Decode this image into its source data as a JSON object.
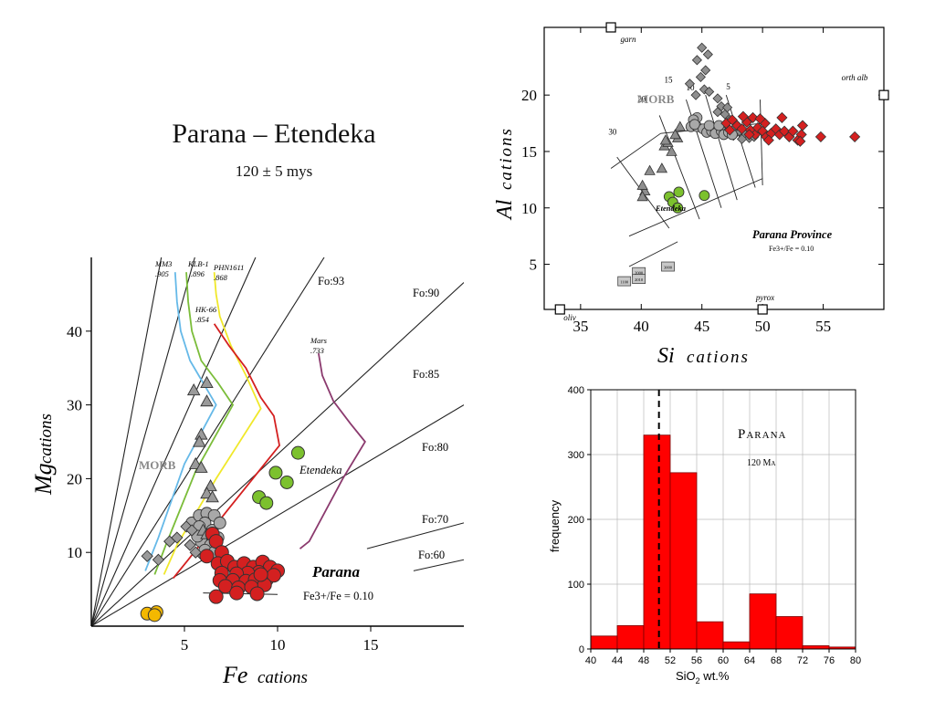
{
  "header": {
    "title": "Parana – Etendeka",
    "subtitle": "120 ± 5 mys"
  },
  "colors": {
    "grey": "#9a9a9a",
    "grey_dark": "#555555",
    "green": "#7cc12e",
    "red": "#d42020",
    "orange": "#f4b800",
    "hist_red": "#ff0000",
    "mm3": "#66b9e8",
    "klb": "#7bbd3a",
    "phn": "#f0e82a",
    "hk66": "#d42020",
    "mars": "#8b3a6e"
  },
  "chart_data": [
    {
      "id": "mg_fe",
      "type": "scatter",
      "xlabel_main": "Fe",
      "xlabel_sub": "cations",
      "ylabel_main": "Mg",
      "ylabel_sub": "cations",
      "xlim": [
        0,
        20
      ],
      "ylim": [
        0,
        50
      ],
      "xticks": [
        5,
        10,
        15
      ],
      "yticks": [
        10,
        20,
        30,
        40
      ],
      "fo_lines": [
        {
          "label": "Fo:93",
          "slope": 13.3
        },
        {
          "label": "Fo:90",
          "slope": 9.0
        },
        {
          "label": "Fo:85",
          "slope": 5.67
        },
        {
          "label": "Fo:80",
          "slope": 4.0
        },
        {
          "label": "Fo:70",
          "slope": 2.33
        },
        {
          "label": "Fo:60",
          "slope": 1.5
        }
      ],
      "curves": [
        {
          "name": "MM3",
          "value": ".905",
          "color_key": "mm3",
          "points": [
            [
              4.5,
              48
            ],
            [
              4.6,
              44
            ],
            [
              4.8,
              40
            ],
            [
              5.3,
              36
            ],
            [
              6.0,
              33
            ],
            [
              6.7,
              30
            ],
            [
              5.0,
              22
            ],
            [
              3.6,
              12
            ],
            [
              2.9,
              7.5
            ]
          ]
        },
        {
          "name": "KLB-1",
          "value": ".896",
          "color_key": "klb",
          "points": [
            [
              5.1,
              48
            ],
            [
              5.2,
              44
            ],
            [
              5.4,
              40
            ],
            [
              5.9,
              36
            ],
            [
              6.8,
              33
            ],
            [
              7.6,
              30
            ],
            [
              5.6,
              21
            ],
            [
              4.0,
              11
            ],
            [
              3.4,
              7
            ]
          ]
        },
        {
          "name": "PHN1611",
          "value": ".868",
          "color_key": "phn",
          "points": [
            [
              6.6,
              48
            ],
            [
              6.7,
              45
            ],
            [
              6.9,
              42
            ],
            [
              7.5,
              38
            ],
            [
              8.3,
              34
            ],
            [
              9.1,
              29.5
            ],
            [
              6.7,
              20
            ],
            [
              4.6,
              11
            ],
            [
              3.9,
              7
            ]
          ]
        },
        {
          "name": "HK-66",
          "value": ".854",
          "color_key": "hk66",
          "points": [
            [
              6.6,
              41
            ],
            [
              7.4,
              38
            ],
            [
              8.3,
              35
            ],
            [
              9.1,
              31
            ],
            [
              9.8,
              28.5
            ],
            [
              10.1,
              24.5
            ],
            [
              7.4,
              16
            ],
            [
              5.2,
              9
            ],
            [
              4.4,
              6.5
            ]
          ]
        },
        {
          "name": "Mars",
          "value": ".733",
          "color_key": "mars",
          "points": [
            [
              12.2,
              37
            ],
            [
              12.4,
              34
            ],
            [
              13.0,
              30.5
            ],
            [
              13.9,
              27.5
            ],
            [
              14.7,
              25
            ],
            [
              13.5,
              20
            ],
            [
              11.7,
              11.5
            ],
            [
              11.2,
              10.5
            ]
          ]
        }
      ],
      "morb_triangles": [
        [
          5.5,
          32
        ],
        [
          6.2,
          33
        ],
        [
          6.2,
          30.5
        ],
        [
          5.9,
          26
        ],
        [
          5.8,
          25
        ],
        [
          5.6,
          22
        ],
        [
          5.9,
          21.5
        ],
        [
          6.4,
          19
        ],
        [
          6.2,
          18
        ],
        [
          6.5,
          17.5
        ],
        [
          6.0,
          13
        ],
        [
          6.2,
          12.5
        ]
      ],
      "morb_diamonds": [
        [
          3.0,
          9.5
        ],
        [
          3.6,
          9
        ],
        [
          4.2,
          11.5
        ],
        [
          4.6,
          12
        ],
        [
          5.1,
          13.5
        ],
        [
          5.4,
          13
        ],
        [
          5.3,
          11
        ],
        [
          5.6,
          10
        ],
        [
          6.0,
          9.5
        ]
      ],
      "morb_circles": [
        [
          5.4,
          14
        ],
        [
          5.8,
          15
        ],
        [
          6.2,
          15.3
        ],
        [
          6.6,
          15
        ],
        [
          6.1,
          14
        ],
        [
          5.8,
          13.5
        ],
        [
          6.5,
          13
        ],
        [
          6.3,
          12
        ],
        [
          6.8,
          12
        ],
        [
          5.9,
          11.5
        ],
        [
          6.4,
          11
        ],
        [
          6.1,
          10.3
        ],
        [
          6.6,
          10
        ],
        [
          5.7,
          12.2
        ],
        [
          6.9,
          14
        ]
      ],
      "etendeka_points": [
        [
          11.1,
          23.5
        ],
        [
          9.9,
          20.8
        ],
        [
          10.5,
          19.5
        ],
        [
          9.0,
          17.5
        ],
        [
          9.4,
          16.7
        ]
      ],
      "parana_points": [
        [
          6.5,
          12.5
        ],
        [
          6.7,
          11.5
        ],
        [
          7.0,
          10
        ],
        [
          6.2,
          9.5
        ],
        [
          6.8,
          8.5
        ],
        [
          7.3,
          8.8
        ],
        [
          7.7,
          8
        ],
        [
          8.2,
          8.5
        ],
        [
          8.7,
          8
        ],
        [
          9.2,
          8.7
        ],
        [
          9.6,
          8
        ],
        [
          10.0,
          7.5
        ],
        [
          9.0,
          7.3
        ],
        [
          8.4,
          7.2
        ],
        [
          7.8,
          7.1
        ],
        [
          7.0,
          7.2
        ],
        [
          6.9,
          6.2
        ],
        [
          7.6,
          6.2
        ],
        [
          8.3,
          6.1
        ],
        [
          8.8,
          6.3
        ],
        [
          9.4,
          6.3
        ],
        [
          9.8,
          6.9
        ],
        [
          7.2,
          5.4
        ],
        [
          7.9,
          5.2
        ],
        [
          8.6,
          5.3
        ],
        [
          9.3,
          5.6
        ],
        [
          6.7,
          4.0
        ],
        [
          7.8,
          4.5
        ],
        [
          8.9,
          4.4
        ],
        [
          9.1,
          7.0
        ]
      ],
      "orange_points": [
        [
          3.0,
          1.7
        ],
        [
          3.5,
          1.9
        ],
        [
          3.4,
          1.5
        ]
      ],
      "labels": {
        "morb": "MORB",
        "etendeka": "Etendeka",
        "parana": "Parana",
        "ratio": "Fe3+/Fe = 0.10"
      }
    },
    {
      "id": "al_si",
      "type": "scatter",
      "xlabel_main": "Si",
      "xlabel_sub": "cations",
      "ylabel_main": "Al",
      "ylabel_sub": "cations",
      "xlim": [
        32,
        60
      ],
      "ylim": [
        1,
        26
      ],
      "xticks": [
        35,
        40,
        45,
        50,
        55
      ],
      "yticks": [
        5,
        10,
        15,
        20
      ],
      "end_members": [
        {
          "label": "garn",
          "x": 37.5,
          "y": 26
        },
        {
          "label": "orth alb",
          "x": 60,
          "y": 20
        },
        {
          "label": "oliv",
          "x": 33.3,
          "y": 1
        },
        {
          "label": "pyrox",
          "x": 50,
          "y": 1
        }
      ],
      "contour_labels": [
        "30",
        "20",
        "15",
        "10",
        "5"
      ],
      "morb_triangles": [
        [
          40.3,
          11.5
        ],
        [
          40.7,
          13.3
        ],
        [
          40.1,
          12
        ],
        [
          41.7,
          13.5
        ],
        [
          41.9,
          15.5
        ],
        [
          42.5,
          15
        ],
        [
          43.0,
          16.2
        ],
        [
          42.2,
          15.8
        ],
        [
          42.8,
          16.5
        ],
        [
          43.2,
          17.2
        ],
        [
          42.0,
          16.0
        ],
        [
          40.1,
          11.0
        ]
      ],
      "morb_circles": [
        [
          44.6,
          18
        ],
        [
          44.3,
          17.8
        ],
        [
          44.1,
          17.2
        ],
        [
          44.6,
          17.2
        ],
        [
          45.1,
          17.0
        ],
        [
          45.4,
          16.7
        ],
        [
          45.8,
          16.8
        ],
        [
          46.1,
          16.6
        ],
        [
          46.6,
          16.8
        ],
        [
          46.8,
          16.5
        ],
        [
          47.2,
          16.7
        ],
        [
          47.5,
          16.5
        ],
        [
          45.6,
          17.3
        ],
        [
          44.4,
          17.4
        ],
        [
          46.4,
          17.3
        ]
      ],
      "morb_diamonds": [
        [
          45.0,
          24.2
        ],
        [
          45.5,
          23.6
        ],
        [
          44.6,
          23.1
        ],
        [
          45.3,
          22.2
        ],
        [
          44.9,
          21.6
        ],
        [
          45.2,
          20.5
        ],
        [
          44.5,
          20.0
        ],
        [
          45.6,
          20.3
        ],
        [
          44.0,
          21.0
        ],
        [
          46.3,
          19.7
        ],
        [
          46.6,
          19.0
        ],
        [
          46.9,
          18.3
        ],
        [
          47.3,
          17.8
        ],
        [
          47.8,
          17.2
        ],
        [
          48.1,
          16.8
        ],
        [
          48.6,
          16.5
        ],
        [
          48.9,
          16.2
        ],
        [
          47.6,
          16.4
        ],
        [
          48.3,
          16.1
        ],
        [
          49.3,
          16.3
        ],
        [
          46.3,
          18.5
        ],
        [
          47.1,
          18.9
        ]
      ],
      "green_points": [
        [
          42.3,
          11.0
        ],
        [
          42.6,
          10.5
        ],
        [
          43.0,
          10.0
        ],
        [
          45.2,
          11.1
        ],
        [
          43.1,
          11.4
        ]
      ],
      "red_diamonds": [
        [
          47.0,
          17.5
        ],
        [
          47.5,
          17.8
        ],
        [
          47.9,
          17.3
        ],
        [
          48.3,
          17.0
        ],
        [
          48.7,
          17.6
        ],
        [
          49.0,
          16.9
        ],
        [
          49.4,
          16.5
        ],
        [
          49.6,
          17.1
        ],
        [
          50.0,
          16.8
        ],
        [
          50.3,
          16.3
        ],
        [
          50.7,
          16.6
        ],
        [
          51.1,
          17.0
        ],
        [
          51.4,
          16.5
        ],
        [
          51.8,
          16.8
        ],
        [
          52.2,
          16.3
        ],
        [
          52.5,
          16.8
        ],
        [
          52.9,
          16.0
        ],
        [
          53.2,
          16.5
        ],
        [
          50.2,
          17.5
        ],
        [
          49.2,
          18.0
        ],
        [
          49.8,
          17.9
        ],
        [
          48.4,
          18.1
        ],
        [
          53.1,
          15.9
        ],
        [
          53.3,
          17.3
        ],
        [
          54.8,
          16.3
        ],
        [
          57.6,
          16.3
        ],
        [
          51.6,
          18.0
        ],
        [
          50.5,
          16.0
        ],
        [
          48.9,
          16.5
        ],
        [
          47.3,
          16.9
        ]
      ],
      "boxed_labels": [
        {
          "x": 39.8,
          "y": 4.3,
          "text": "2000"
        },
        {
          "x": 39.8,
          "y": 3.7,
          "text": "2010"
        },
        {
          "x": 38.6,
          "y": 3.5,
          "text": "1100"
        },
        {
          "x": 42.2,
          "y": 4.8,
          "text": "3000"
        }
      ],
      "labels": {
        "morb": "MORB",
        "etendeka": "Etendeka",
        "province": "Parana Province",
        "ratio": "Fe3+/Fe = 0.10"
      }
    },
    {
      "id": "histogram",
      "type": "bar",
      "xlabel_prefix": "SiO",
      "xlabel_subscript": "2",
      "xlabel_suffix": " wt.%",
      "ylabel": "frequency",
      "xlim": [
        40,
        80
      ],
      "ylim": [
        0,
        400
      ],
      "xticks": [
        40,
        44,
        48,
        52,
        56,
        60,
        64,
        68,
        72,
        76,
        80
      ],
      "yticks": [
        0,
        100,
        200,
        300,
        400
      ],
      "bins": [
        [
          40,
          44,
          20
        ],
        [
          44,
          48,
          36
        ],
        [
          48,
          52,
          330
        ],
        [
          52,
          56,
          272
        ],
        [
          56,
          60,
          42
        ],
        [
          60,
          64,
          11
        ],
        [
          64,
          68,
          85
        ],
        [
          68,
          72,
          50
        ],
        [
          72,
          76,
          5
        ],
        [
          76,
          80,
          3
        ]
      ],
      "dashed_line_x": 50.3,
      "annotation_title": "Parana",
      "annotation_sub": "120 Ma"
    }
  ]
}
